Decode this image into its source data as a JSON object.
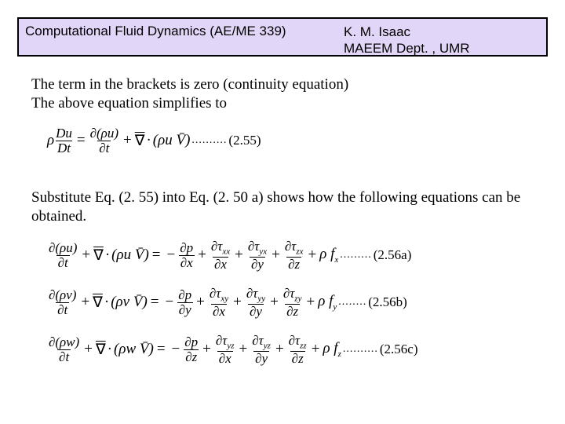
{
  "header": {
    "course": "Computational Fluid Dynamics (AE/ME 339)",
    "author": "K. M. Isaac",
    "dept": "MAEEM Dept. , UMR",
    "bg_color": "#e2d6f8",
    "border_color": "#000000"
  },
  "paragraphs": {
    "p1_line1": "The term in the brackets is zero (continuity equation)",
    "p1_line2": "The above equation simplifies to",
    "p2": "Substitute Eq. (2. 55) into Eq. (2. 50 a) shows how the following equations can be obtained."
  },
  "equations": {
    "eq255": {
      "lhs_rho": "ρ",
      "lhs_num": "Du",
      "lhs_den": "Dt",
      "rhs_t1_num": "∂(ρu)",
      "rhs_t1_den": "∂t",
      "rhs_div_op": "∇",
      "rhs_div_arg": "(ρu V̄)",
      "number": "(2.55)"
    },
    "momentum": [
      {
        "var": "u",
        "t1_num": "∂(ρu)",
        "t1_den": "∂t",
        "div_arg": "(ρu V̄)",
        "p_num": "∂p",
        "p_den": "∂x",
        "tau1_num": "∂τ",
        "tau1_sub": "xx",
        "tau1_den": "∂x",
        "tau2_num": "∂τ",
        "tau2_sub": "yx",
        "tau2_den": "∂y",
        "tau3_num": "∂τ",
        "tau3_sub": "zx",
        "tau3_den": "∂z",
        "body": "ρ f",
        "body_sub": "x",
        "number": "(2.56a)"
      },
      {
        "var": "v",
        "t1_num": "∂(ρv)",
        "t1_den": "∂t",
        "div_arg": "(ρv V̄)",
        "p_num": "∂p",
        "p_den": "∂y",
        "tau1_num": "∂τ",
        "tau1_sub": "xy",
        "tau1_den": "∂x",
        "tau2_num": "∂τ",
        "tau2_sub": "yy",
        "tau2_den": "∂y",
        "tau3_num": "∂τ",
        "tau3_sub": "zy",
        "tau3_den": "∂z",
        "body": "ρ f",
        "body_sub": "y",
        "number": "(2.56b)"
      },
      {
        "var": "w",
        "t1_num": "∂(ρw)",
        "t1_den": "∂t",
        "div_arg": "(ρw V̄)",
        "p_num": "∂p",
        "p_den": "∂z",
        "tau1_num": "∂τ",
        "tau1_sub": "yz",
        "tau1_den": "∂x",
        "tau2_num": "∂τ",
        "tau2_sub": "yz",
        "tau2_den": "∂y",
        "tau3_num": "∂τ",
        "tau3_sub": "zz",
        "tau3_den": "∂z",
        "body": "ρ f",
        "body_sub": "z",
        "number": "(2.56c)"
      }
    ]
  },
  "style": {
    "page_bg": "#ffffff",
    "text_color": "#000000",
    "body_font": "Times New Roman",
    "header_font": "Arial",
    "body_fontsize_pt": 14,
    "header_fontsize_pt": 13
  }
}
